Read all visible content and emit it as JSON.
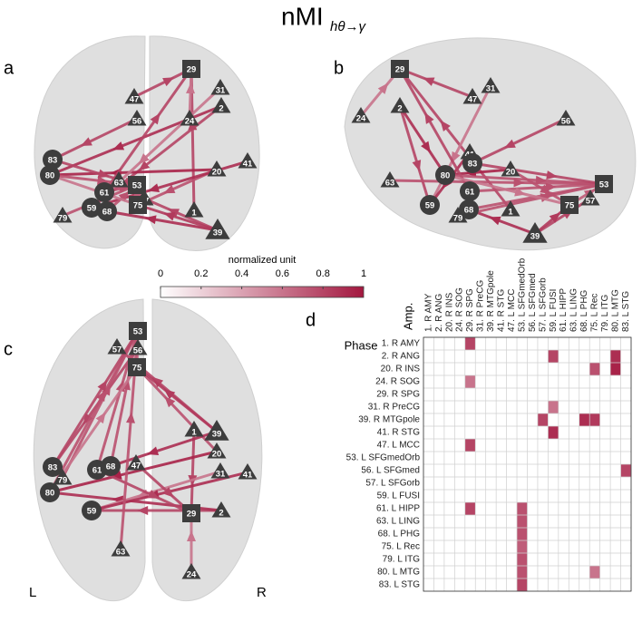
{
  "title": "nMI",
  "title_subscript": "hθ→γ",
  "panels": [
    {
      "label": "a"
    },
    {
      "label": "b"
    },
    {
      "label": "c",
      "left": "L",
      "right": "R"
    }
  ],
  "nodes": [
    "1",
    "2",
    "20",
    "24",
    "29",
    "31",
    "39",
    "41",
    "47",
    "53",
    "56",
    "57",
    "59",
    "61",
    "63",
    "68",
    "75",
    "79",
    "80",
    "83"
  ],
  "colorbar": {
    "label": "normalized unit",
    "range": [
      0,
      1
    ],
    "ticks": [
      0,
      0.2,
      0.4,
      0.6,
      0.8,
      1
    ],
    "colors": [
      "#ffffff",
      "#a3173f"
    ]
  },
  "matrix": {
    "label": "d",
    "row_title": "Phase",
    "col_title": "Amp.",
    "labels": [
      "1. R AMY",
      "2. R ANG",
      "20. R INS",
      "24. R SOG",
      "29. R SPG",
      "31. R PreCG",
      "39. R MTGpole",
      "41. R STG",
      "47. L MCC",
      "53. L SFGmedOrb",
      "56. L SFGmed",
      "57. L SFGorb",
      "59. L FUSI",
      "61. L HIPP",
      "63. L LING",
      "68. L PHG",
      "75. L Rec",
      "79. L ITG",
      "80. L MTG",
      "83. L STG"
    ],
    "cells": [
      {
        "row": 0,
        "col": 4,
        "value": 0.8
      },
      {
        "row": 1,
        "col": 12,
        "value": 0.8
      },
      {
        "row": 1,
        "col": 18,
        "value": 0.9
      },
      {
        "row": 2,
        "col": 16,
        "value": 0.75
      },
      {
        "row": 2,
        "col": 18,
        "value": 0.95
      },
      {
        "row": 3,
        "col": 4,
        "value": 0.6
      },
      {
        "row": 5,
        "col": 12,
        "value": 0.6
      },
      {
        "row": 6,
        "col": 11,
        "value": 0.8
      },
      {
        "row": 6,
        "col": 15,
        "value": 0.9
      },
      {
        "row": 6,
        "col": 16,
        "value": 0.85
      },
      {
        "row": 7,
        "col": 12,
        "value": 0.9
      },
      {
        "row": 8,
        "col": 4,
        "value": 0.8
      },
      {
        "row": 10,
        "col": 19,
        "value": 0.8
      },
      {
        "row": 13,
        "col": 4,
        "value": 0.8
      },
      {
        "row": 13,
        "col": 9,
        "value": 0.75
      },
      {
        "row": 14,
        "col": 9,
        "value": 0.75
      },
      {
        "row": 15,
        "col": 9,
        "value": 0.75
      },
      {
        "row": 16,
        "col": 9,
        "value": 0.7
      },
      {
        "row": 17,
        "col": 9,
        "value": 0.75
      },
      {
        "row": 18,
        "col": 9,
        "value": 0.75
      },
      {
        "row": 18,
        "col": 16,
        "value": 0.6
      },
      {
        "row": 19,
        "col": 9,
        "value": 0.8
      }
    ]
  }
}
